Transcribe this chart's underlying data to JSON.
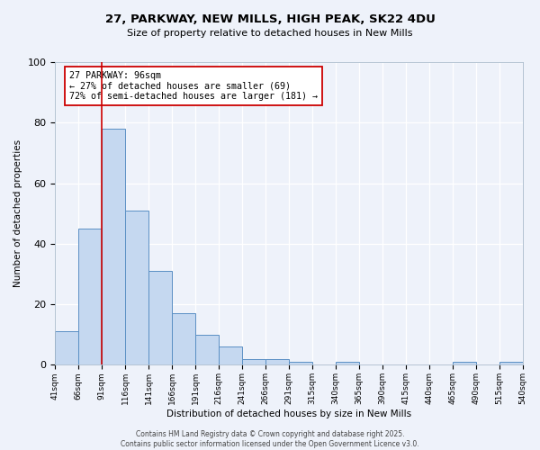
{
  "title": "27, PARKWAY, NEW MILLS, HIGH PEAK, SK22 4DU",
  "subtitle": "Size of property relative to detached houses in New Mills",
  "xlabel": "Distribution of detached houses by size in New Mills",
  "ylabel": "Number of detached properties",
  "bar_values": [
    11,
    45,
    78,
    51,
    31,
    17,
    10,
    6,
    2,
    2,
    1,
    0,
    1,
    0,
    0,
    0,
    0,
    1,
    0,
    1
  ],
  "tick_labels": [
    "41sqm",
    "66sqm",
    "91sqm",
    "116sqm",
    "141sqm",
    "166sqm",
    "191sqm",
    "216sqm",
    "241sqm",
    "266sqm",
    "291sqm",
    "315sqm",
    "340sqm",
    "365sqm",
    "390sqm",
    "415sqm",
    "440sqm",
    "465sqm",
    "490sqm",
    "515sqm",
    "540sqm"
  ],
  "bar_color": "#c5d8f0",
  "bar_edge_color": "#5a8fc4",
  "vline_x": 2.0,
  "vline_color": "#cc0000",
  "annotation_text": "27 PARKWAY: 96sqm\n← 27% of detached houses are smaller (69)\n72% of semi-detached houses are larger (181) →",
  "annotation_box_color": "#ffffff",
  "annotation_box_edge": "#cc0000",
  "ylim": [
    0,
    100
  ],
  "background_color": "#eef2fa",
  "grid_color": "#ffffff",
  "footer_line1": "Contains HM Land Registry data © Crown copyright and database right 2025.",
  "footer_line2": "Contains public sector information licensed under the Open Government Licence v3.0."
}
